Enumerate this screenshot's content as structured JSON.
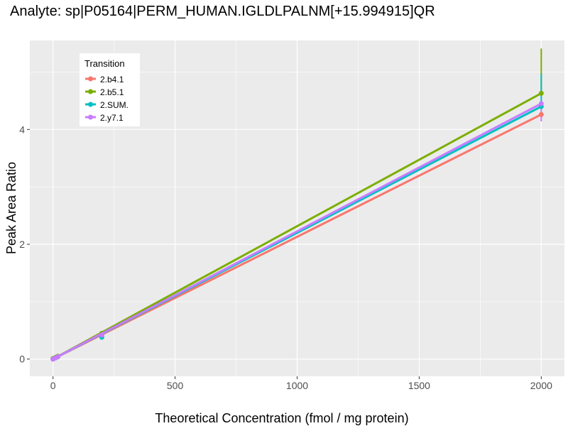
{
  "chart_data": {
    "type": "line",
    "title": "Analyte: sp|P05164|PERM_HUMAN.IGLDLPALNM[+15.994915]QR",
    "xlabel": "Theoretical Concentration (fmol / mg protein)",
    "ylabel": "Peak Area Ratio",
    "xlim": [
      -95,
      2095
    ],
    "ylim": [
      -0.3,
      5.55
    ],
    "xticks": [
      0,
      500,
      1000,
      1500,
      2000
    ],
    "yticks": [
      0,
      2,
      4
    ],
    "grid": true,
    "legend": {
      "title": "Transition",
      "placement": "top-left"
    },
    "x": [
      0,
      10,
      20,
      200,
      2000
    ],
    "series": [
      {
        "name": "2.b4.1",
        "color": "#F8766D",
        "values": [
          0.0,
          0.02,
          0.04,
          0.42,
          4.26
        ],
        "fit_slope": 0.00213,
        "error": null
      },
      {
        "name": "2.b5.1",
        "color": "#7CAE00",
        "values": [
          0.01,
          0.03,
          0.05,
          0.45,
          4.63
        ],
        "fit_slope": 0.002315,
        "error": [
          4.63,
          5.41
        ]
      },
      {
        "name": "2.SUM.",
        "color": "#00BFC4",
        "values": [
          0.0,
          0.02,
          0.04,
          0.38,
          4.4
        ],
        "fit_slope": 0.0022,
        "error": [
          4.4,
          4.97
        ]
      },
      {
        "name": "2.y7.1",
        "color": "#C77CFF",
        "values": [
          0.0,
          0.02,
          0.04,
          0.42,
          4.45
        ],
        "fit_slope": 0.002225,
        "error": [
          4.14,
          4.45
        ]
      }
    ]
  }
}
